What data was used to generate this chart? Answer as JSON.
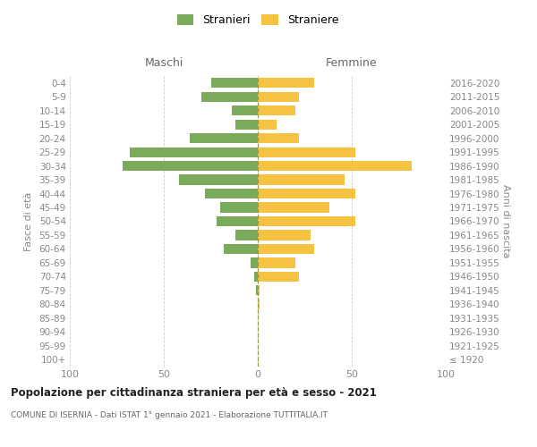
{
  "age_groups": [
    "100+",
    "95-99",
    "90-94",
    "85-89",
    "80-84",
    "75-79",
    "70-74",
    "65-69",
    "60-64",
    "55-59",
    "50-54",
    "45-49",
    "40-44",
    "35-39",
    "30-34",
    "25-29",
    "20-24",
    "15-19",
    "10-14",
    "5-9",
    "0-4"
  ],
  "birth_years": [
    "≤ 1920",
    "1921-1925",
    "1926-1930",
    "1931-1935",
    "1936-1940",
    "1941-1945",
    "1946-1950",
    "1951-1955",
    "1956-1960",
    "1961-1965",
    "1966-1970",
    "1971-1975",
    "1976-1980",
    "1981-1985",
    "1986-1990",
    "1991-1995",
    "1996-2000",
    "2001-2005",
    "2006-2010",
    "2011-2015",
    "2016-2020"
  ],
  "maschi": [
    0,
    0,
    0,
    0,
    0,
    1,
    2,
    4,
    18,
    12,
    22,
    20,
    28,
    42,
    72,
    68,
    36,
    12,
    14,
    30,
    25
  ],
  "femmine": [
    0,
    0,
    0,
    0,
    1,
    1,
    22,
    20,
    30,
    28,
    52,
    38,
    52,
    46,
    82,
    52,
    22,
    10,
    20,
    22,
    30
  ],
  "male_color": "#7aab5a",
  "female_color": "#f5c242",
  "title": "Popolazione per cittadinanza straniera per età e sesso - 2021",
  "subtitle": "COMUNE DI ISERNIA - Dati ISTAT 1° gennaio 2021 - Elaborazione TUTTITALIA.IT",
  "label_maschi": "Maschi",
  "label_femmine": "Femmine",
  "ylabel_left": "Fasce di età",
  "ylabel_right": "Anni di nascita",
  "legend_male": "Stranieri",
  "legend_female": "Straniere",
  "xlim": 100,
  "grid_color": "#cccccc"
}
